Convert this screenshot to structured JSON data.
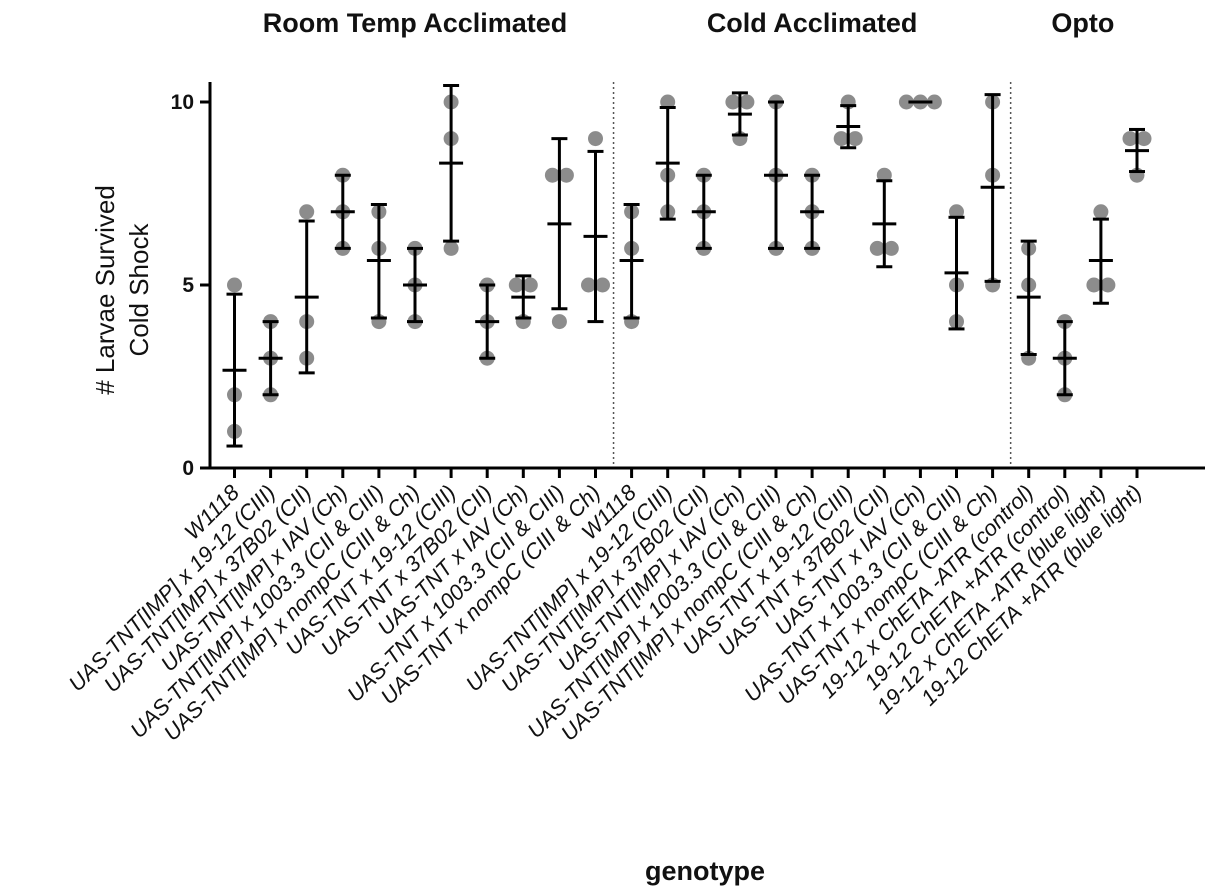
{
  "chart_data": {
    "type": "scatter",
    "title": "",
    "xlabel": "genotype",
    "ylabel_lines": [
      "# Larvae Survived",
      "Cold Shock"
    ],
    "ylim": [
      0,
      10.5
    ],
    "yticks": [
      0,
      5,
      10
    ],
    "ytick_labels": [
      "0",
      "5",
      "10"
    ],
    "grid": false,
    "point_color": "#8c8c8c",
    "bar_color": "#000000",
    "separator_color": "#555555",
    "groups": [
      {
        "title": "Room Temp Acclimated",
        "start": 0,
        "end": 10
      },
      {
        "title": "Cold Acclimated",
        "start": 11,
        "end": 21
      },
      {
        "title": "Opto",
        "start": 22,
        "end": 25
      }
    ],
    "categories": [
      "W1118",
      "UAS-TNT[IMP] x 19-12 (CIII)",
      "UAS-TNT[IMP] x 37B02 (CII)",
      "UAS-TNT[IMP] x IAV (Ch)",
      "UAS-TNT[IMP] x 1003.3 (CII & CIII)",
      "UAS-TNT[IMP] x nompC (CIII & Ch)",
      "UAS-TNT x 19-12 (CIII)",
      "UAS-TNT x 37B02 (CII)",
      "UAS-TNT x IAV (Ch)",
      "UAS-TNT x 1003.3 (CII & CIII)",
      "UAS-TNT x nompC (CIII & Ch)",
      "W1118",
      "UAS-TNT[IMP] x 19-12 (CIII)",
      "UAS-TNT[IMP] x 37B02 (CII)",
      "UAS-TNT[IMP] x IAV (Ch)",
      "UAS-TNT[IMP] x 1003.3 (CII & CIII)",
      "UAS-TNT[IMP] x nompC (CIII & Ch)",
      "UAS-TNT x 19-12 (CIII)",
      "UAS-TNT x 37B02 (CII)",
      "UAS-TNT x IAV (Ch)",
      "UAS-TNT x 1003.3 (CII & CIII)",
      "UAS-TNT x nompC (CIII & Ch)",
      "19-12 x ChETA -ATR (control)",
      "19-12 ChETA +ATR (control)",
      "19-12 x ChETA -ATR (blue light)",
      "19-12 ChETA +ATR (blue light)"
    ],
    "series": [
      {
        "points": [
          5,
          2,
          1
        ],
        "mean": 2.67,
        "err_low": 0.6,
        "err_high": 4.75
      },
      {
        "points": [
          4,
          3,
          2
        ],
        "mean": 3.0,
        "err_low": 2.0,
        "err_high": 4.0
      },
      {
        "points": [
          7,
          4,
          3
        ],
        "mean": 4.67,
        "err_low": 2.6,
        "err_high": 6.75
      },
      {
        "points": [
          8,
          7,
          6
        ],
        "mean": 7.0,
        "err_low": 6.0,
        "err_high": 8.0
      },
      {
        "points": [
          7,
          6,
          4
        ],
        "mean": 5.67,
        "err_low": 4.1,
        "err_high": 7.2
      },
      {
        "points": [
          6,
          5,
          4
        ],
        "mean": 5.0,
        "err_low": 4.0,
        "err_high": 6.0
      },
      {
        "points": [
          10,
          9,
          6
        ],
        "mean": 8.33,
        "err_low": 6.2,
        "err_high": 10.45
      },
      {
        "points": [
          5,
          4,
          3
        ],
        "mean": 4.0,
        "err_low": 3.0,
        "err_high": 5.0
      },
      {
        "points": [
          5,
          5,
          4
        ],
        "mean": 4.67,
        "err_low": 4.1,
        "err_high": 5.25
      },
      {
        "points": [
          8,
          8,
          4
        ],
        "mean": 6.67,
        "err_low": 4.35,
        "err_high": 9.0
      },
      {
        "points": [
          9,
          5,
          5
        ],
        "mean": 6.33,
        "err_low": 4.0,
        "err_high": 8.65
      },
      {
        "points": [
          7,
          6,
          4
        ],
        "mean": 5.67,
        "err_low": 4.1,
        "err_high": 7.2
      },
      {
        "points": [
          10,
          8,
          7
        ],
        "mean": 8.33,
        "err_low": 6.8,
        "err_high": 9.85
      },
      {
        "points": [
          8,
          7,
          6
        ],
        "mean": 7.0,
        "err_low": 6.0,
        "err_high": 8.0
      },
      {
        "points": [
          10,
          10,
          9
        ],
        "mean": 9.67,
        "err_low": 9.1,
        "err_high": 10.25
      },
      {
        "points": [
          10,
          8,
          6
        ],
        "mean": 8.0,
        "err_low": 6.0,
        "err_high": 10.0
      },
      {
        "points": [
          8,
          7,
          6
        ],
        "mean": 7.0,
        "err_low": 6.0,
        "err_high": 8.0
      },
      {
        "points": [
          10,
          9,
          9
        ],
        "mean": 9.33,
        "err_low": 8.75,
        "err_high": 9.9
      },
      {
        "points": [
          8,
          6,
          6
        ],
        "mean": 6.67,
        "err_low": 5.5,
        "err_high": 7.85
      },
      {
        "points": [
          10,
          10,
          10
        ],
        "mean": 10.0,
        "err_low": 10.0,
        "err_high": 10.0
      },
      {
        "points": [
          7,
          5,
          4
        ],
        "mean": 5.33,
        "err_low": 3.8,
        "err_high": 6.85
      },
      {
        "points": [
          10,
          8,
          5
        ],
        "mean": 7.67,
        "err_low": 5.1,
        "err_high": 10.2
      },
      {
        "points": [
          6,
          5,
          3
        ],
        "mean": 4.67,
        "err_low": 3.1,
        "err_high": 6.2
      },
      {
        "points": [
          4,
          3,
          2
        ],
        "mean": 3.0,
        "err_low": 2.0,
        "err_high": 4.0
      },
      {
        "points": [
          7,
          5,
          5
        ],
        "mean": 5.67,
        "err_low": 4.5,
        "err_high": 6.8
      },
      {
        "points": [
          9,
          9,
          8
        ],
        "mean": 8.67,
        "err_low": 8.1,
        "err_high": 9.25
      }
    ]
  }
}
